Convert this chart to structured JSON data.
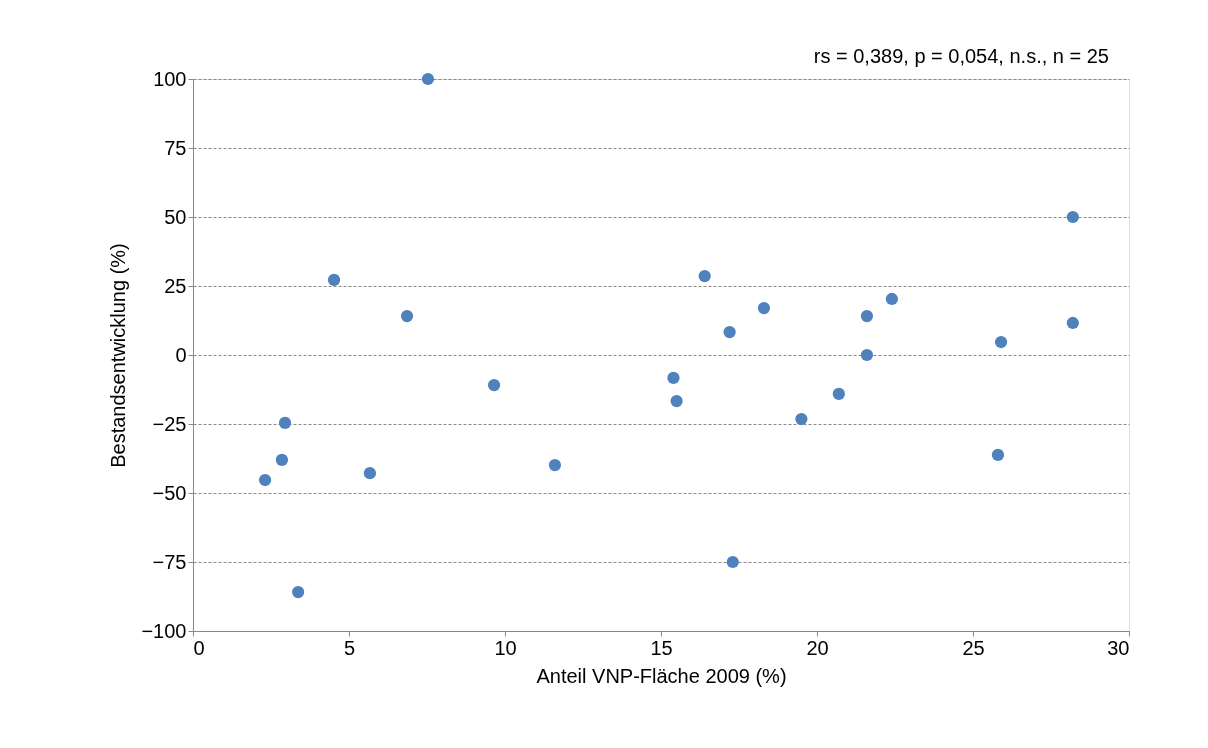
{
  "chart_data": {
    "type": "scatter",
    "xlabel": "Anteil VNP-Fläche 2009 (%)",
    "ylabel": "Bestandsentwicklung  (%)",
    "annotations": [
      "rs = 0,389,  p = 0,054, n.s., n = 25"
    ],
    "xlim": [
      0,
      30
    ],
    "xticks": [
      0,
      5,
      10,
      15,
      20,
      25,
      30
    ],
    "ylim": [
      -100,
      100
    ],
    "yticks": [
      -100,
      -75,
      -50,
      -25,
      0,
      25,
      50,
      75,
      100
    ],
    "grid": "y",
    "marker": "circle",
    "series": [
      {
        "color": "#4f81bd",
        "x": [
          7.53,
          28.2,
          4.52,
          16.4,
          22.4,
          6.86,
          18.3,
          21.6,
          28.2,
          17.2,
          25.9,
          21.6,
          9.65,
          15.4,
          15.5,
          20.7,
          19.5,
          2.95,
          2.85,
          2.31,
          5.67,
          11.6,
          25.8,
          17.3,
          3.37
        ],
        "values": [
          100,
          50,
          27.2,
          28.6,
          20.3,
          14.1,
          17.0,
          14.1,
          11.6,
          8.3,
          4.7,
          0,
          -10.9,
          -8.3,
          -16.7,
          -14.1,
          -23.2,
          -24.6,
          -38.0,
          -45.3,
          -42.8,
          -39.9,
          -36.2,
          -75,
          -85.9
        ]
      }
    ]
  }
}
